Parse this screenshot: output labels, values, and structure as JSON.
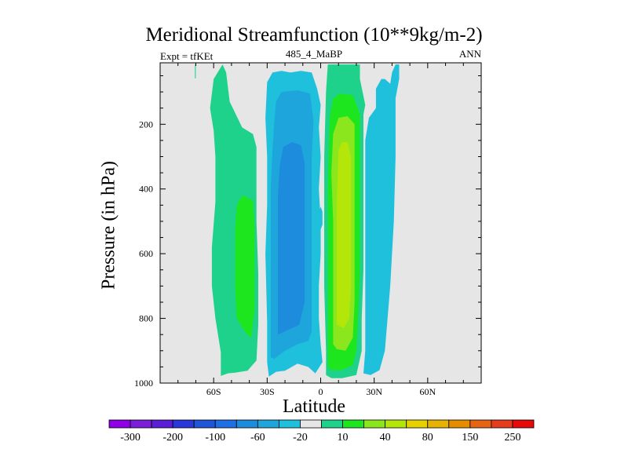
{
  "title": "Meridional Streamfunction (10**9kg/m-2)",
  "left_string": "Expt = tfKEt",
  "center_string": "485_4_MaBP",
  "right_string": "ANN",
  "colors": {
    "background_fill": "#e6e6e6",
    "levels": [
      "#8f00e6",
      "#7a1ed9",
      "#5a1ed9",
      "#2a38d9",
      "#1e55d9",
      "#1e6ee6",
      "#1e8cdc",
      "#1ea5dc",
      "#1ec0dc",
      "#e6e6e6",
      "#1ed28c",
      "#1ee61e",
      "#8ce61e",
      "#b4e60a",
      "#e6d200",
      "#e6b400",
      "#e68c00",
      "#e66414",
      "#e63c1e",
      "#e60a0a"
    ]
  },
  "chart_data": {
    "type": "contour",
    "xlabel": "Latitude",
    "ylabel": "Pressure (in hPa)",
    "xlim": [
      -90,
      90
    ],
    "ylim": [
      1000,
      10
    ],
    "x_ticks": [
      {
        "value": -60,
        "label": "60S"
      },
      {
        "value": -30,
        "label": "30S"
      },
      {
        "value": 0,
        "label": "0"
      },
      {
        "value": 30,
        "label": "30N"
      },
      {
        "value": 60,
        "label": "60N"
      }
    ],
    "y_ticks": [
      {
        "value": 200,
        "label": "200"
      },
      {
        "value": 400,
        "label": "400"
      },
      {
        "value": 600,
        "label": "600"
      },
      {
        "value": 800,
        "label": "800"
      },
      {
        "value": 1000,
        "label": "1000"
      }
    ],
    "colorbar_labels": [
      "-300",
      "-200",
      "-100",
      "-60",
      "-20",
      "10",
      "40",
      "80",
      "150",
      "250"
    ],
    "regions": [
      {
        "name": "shallow-green-sliver",
        "level": 10,
        "points": [
          [
            -70.5,
            15
          ],
          [
            -70,
            15
          ],
          [
            -70,
            58
          ],
          [
            -70.5,
            58
          ]
        ]
      },
      {
        "name": "sh-10-cell",
        "level": 10,
        "points": [
          [
            -56,
            978
          ],
          [
            -56,
            905
          ],
          [
            -59,
            800
          ],
          [
            -61,
            700
          ],
          [
            -61,
            580
          ],
          [
            -59,
            440
          ],
          [
            -59,
            300
          ],
          [
            -60,
            220
          ],
          [
            -62,
            150
          ],
          [
            -60,
            60
          ],
          [
            -55,
            15
          ],
          [
            -53,
            40
          ],
          [
            -51,
            130
          ],
          [
            -44,
            210
          ],
          [
            -38,
            230
          ],
          [
            -36,
            270
          ],
          [
            -36,
            500
          ],
          [
            -35,
            660
          ],
          [
            -35,
            820
          ],
          [
            -36,
            930
          ],
          [
            -41,
            962
          ],
          [
            -48,
            968
          ],
          [
            -52,
            970
          ]
        ]
      },
      {
        "name": "sh-40-cell",
        "level": 40,
        "points": [
          [
            -48,
            530
          ],
          [
            -47,
            450
          ],
          [
            -44,
            420
          ],
          [
            -38,
            435
          ],
          [
            -37,
            520
          ],
          [
            -37,
            650
          ],
          [
            -37,
            770
          ],
          [
            -39,
            860
          ],
          [
            -42,
            845
          ],
          [
            -47,
            800
          ],
          [
            -48,
            700
          ]
        ]
      },
      {
        "name": "sh-neg20-cell",
        "level": -20,
        "points": [
          [
            -29,
            980
          ],
          [
            -30,
            935
          ],
          [
            -30,
            810
          ],
          [
            -31,
            600
          ],
          [
            -30,
            450
          ],
          [
            -30,
            300
          ],
          [
            -31,
            180
          ],
          [
            -30,
            70
          ],
          [
            -27,
            40
          ],
          [
            -22,
            35
          ],
          [
            -17,
            40
          ],
          [
            -11,
            35
          ],
          [
            -5,
            40
          ],
          [
            -2,
            90
          ],
          [
            0,
            140
          ],
          [
            -1,
            210
          ],
          [
            0,
            300
          ],
          [
            -1,
            400
          ],
          [
            0,
            500
          ],
          [
            0,
            600
          ],
          [
            -1,
            700
          ],
          [
            -1,
            800
          ],
          [
            0,
            880
          ],
          [
            1,
            935
          ],
          [
            -3,
            970
          ],
          [
            -7,
            950
          ],
          [
            -13,
            940
          ],
          [
            -20,
            962
          ],
          [
            -25,
            965
          ]
        ]
      },
      {
        "name": "sh-neg60-cell",
        "level": -60,
        "points": [
          [
            -28,
            920
          ],
          [
            -28,
            850
          ],
          [
            -28,
            700
          ],
          [
            -28,
            550
          ],
          [
            -28,
            400
          ],
          [
            -27,
            280
          ],
          [
            -26,
            195
          ],
          [
            -25,
            130
          ],
          [
            -22,
            100
          ],
          [
            -13,
            95
          ],
          [
            -6,
            105
          ],
          [
            -4,
            190
          ],
          [
            -5,
            300
          ],
          [
            -5,
            450
          ],
          [
            -5,
            600
          ],
          [
            -5,
            750
          ],
          [
            -5,
            840
          ],
          [
            -7,
            870
          ],
          [
            -13,
            880
          ],
          [
            -20,
            900
          ],
          [
            -26,
            925
          ]
        ]
      },
      {
        "name": "sh-neg100-cell",
        "level": -100,
        "points": [
          [
            -24,
            850
          ],
          [
            -24,
            700
          ],
          [
            -24,
            550
          ],
          [
            -24,
            420
          ],
          [
            -23,
            330
          ],
          [
            -21,
            270
          ],
          [
            -16,
            255
          ],
          [
            -11,
            265
          ],
          [
            -9,
            320
          ],
          [
            -9,
            450
          ],
          [
            -9,
            600
          ],
          [
            -9,
            750
          ],
          [
            -12,
            820
          ],
          [
            -18,
            835
          ]
        ]
      },
      {
        "name": "equator-neg20-island",
        "level": -20,
        "points": [
          [
            -1,
            470
          ],
          [
            0,
            455
          ],
          [
            1,
            470
          ],
          [
            1,
            510
          ],
          [
            0,
            525
          ],
          [
            -1,
            510
          ]
        ]
      },
      {
        "name": "nh-10-cell",
        "level": 10,
        "points": [
          [
            3,
            975
          ],
          [
            3,
            900
          ],
          [
            2,
            700
          ],
          [
            2,
            500
          ],
          [
            2,
            300
          ],
          [
            3,
            100
          ],
          [
            4,
            15
          ],
          [
            22,
            15
          ],
          [
            22,
            60
          ],
          [
            25,
            140
          ],
          [
            24,
            170
          ],
          [
            24,
            400
          ],
          [
            24,
            650
          ],
          [
            23,
            800
          ],
          [
            23,
            900
          ],
          [
            20,
            975
          ],
          [
            12,
            985
          ],
          [
            6,
            985
          ]
        ]
      },
      {
        "name": "nh-40-cell",
        "level": 40,
        "points": [
          [
            4,
            950
          ],
          [
            4,
            850
          ],
          [
            4,
            600
          ],
          [
            4,
            400
          ],
          [
            5,
            180
          ],
          [
            7,
            120
          ],
          [
            11,
            105
          ],
          [
            18,
            110
          ],
          [
            22,
            170
          ],
          [
            22,
            400
          ],
          [
            22,
            650
          ],
          [
            21,
            800
          ],
          [
            20,
            900
          ],
          [
            18,
            945
          ],
          [
            12,
            960
          ],
          [
            6,
            960
          ]
        ]
      },
      {
        "name": "nh-80-cell",
        "level": 80,
        "points": [
          [
            7,
            880
          ],
          [
            7,
            700
          ],
          [
            7,
            500
          ],
          [
            6,
            350
          ],
          [
            7,
            230
          ],
          [
            10,
            180
          ],
          [
            15,
            175
          ],
          [
            19,
            200
          ],
          [
            19,
            400
          ],
          [
            19,
            600
          ],
          [
            19,
            750
          ],
          [
            18,
            860
          ],
          [
            14,
            900
          ],
          [
            9,
            895
          ]
        ]
      },
      {
        "name": "nh-100-cell",
        "level": 150,
        "points": [
          [
            9,
            820
          ],
          [
            9,
            650
          ],
          [
            9,
            450
          ],
          [
            10,
            280
          ],
          [
            12,
            255
          ],
          [
            15,
            255
          ],
          [
            17,
            300
          ],
          [
            17,
            500
          ],
          [
            17,
            700
          ],
          [
            16,
            800
          ],
          [
            13,
            830
          ]
        ]
      },
      {
        "name": "nh-neg20-cell",
        "level": -20,
        "points": [
          [
            24,
            970
          ],
          [
            25,
            900
          ],
          [
            25,
            700
          ],
          [
            25,
            500
          ],
          [
            25,
            250
          ],
          [
            27,
            180
          ],
          [
            31,
            150
          ],
          [
            31,
            90
          ],
          [
            34,
            60
          ],
          [
            36,
            60
          ],
          [
            39,
            75
          ],
          [
            40,
            40
          ],
          [
            42,
            15
          ],
          [
            44,
            15
          ],
          [
            44,
            60
          ],
          [
            42,
            120
          ],
          [
            42,
            300
          ],
          [
            41,
            500
          ],
          [
            39,
            700
          ],
          [
            36,
            900
          ],
          [
            33,
            960
          ],
          [
            28,
            975
          ]
        ]
      }
    ]
  }
}
